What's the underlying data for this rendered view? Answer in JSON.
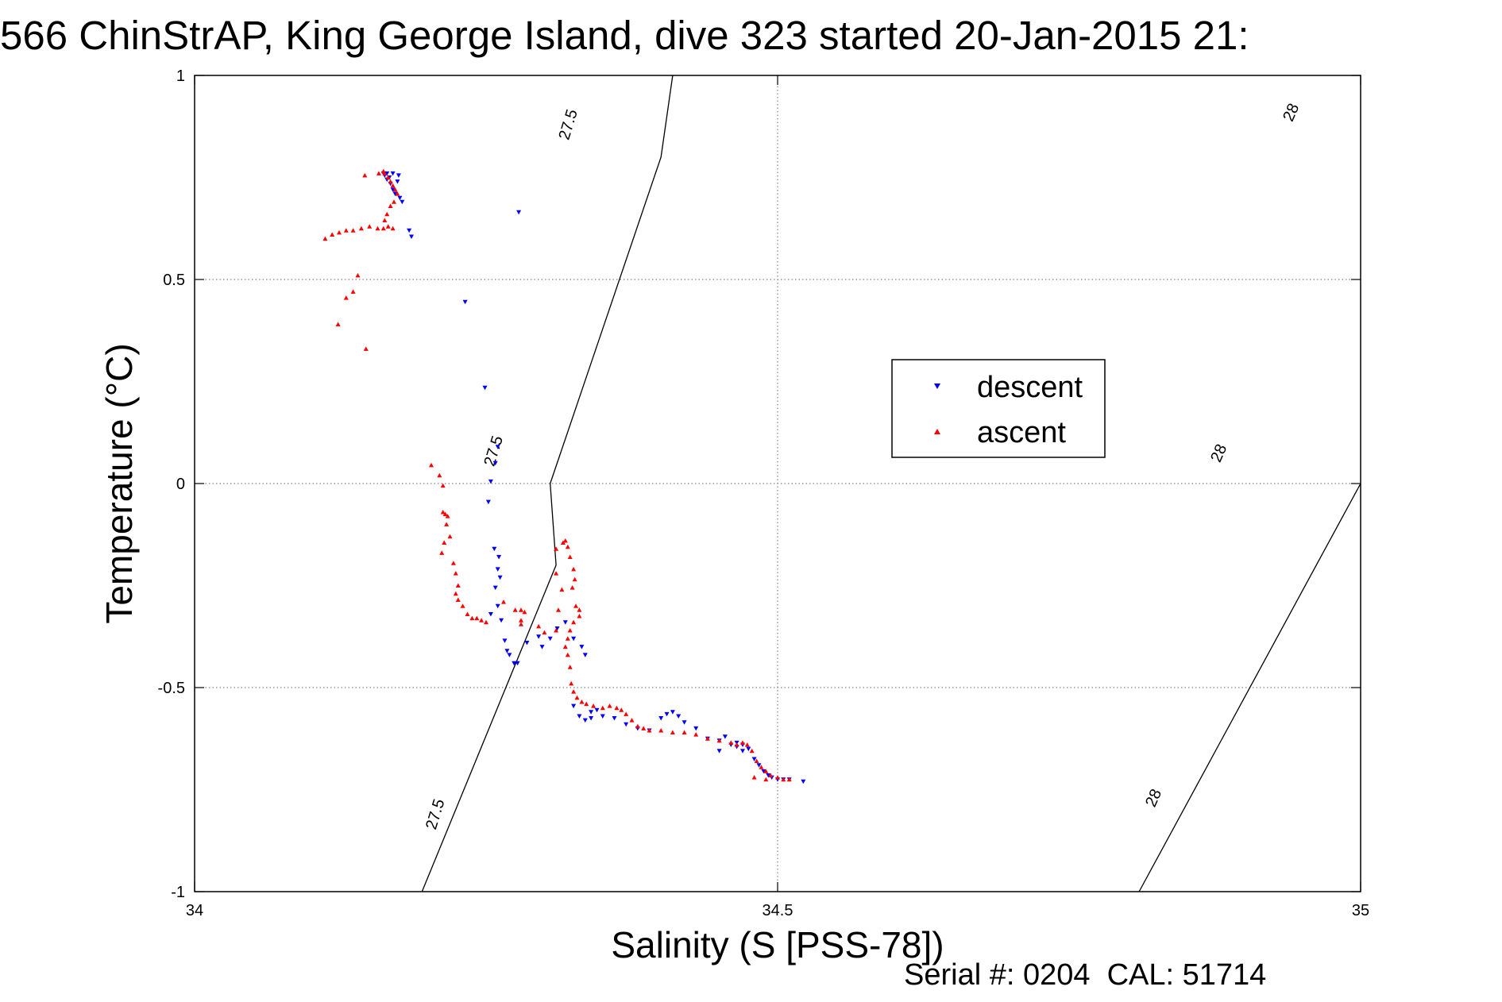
{
  "chart_data": {
    "type": "scatter",
    "title": "566 ChinStrAP, King George Island, dive 323 started 20-Jan-2015 21:",
    "xlabel": "Salinity (S [PSS-78])",
    "ylabel": "Temperature (°C)",
    "footer": "Serial #: 0204  CAL: 51714",
    "xlim": [
      34,
      35
    ],
    "ylim": [
      -1,
      1
    ],
    "xticks": [
      34,
      34.5,
      35
    ],
    "xtick_labels": [
      "34",
      "34.5",
      "35"
    ],
    "yticks": [
      -1,
      -0.5,
      0,
      0.5,
      1
    ],
    "ytick_labels": [
      "-1",
      "-0.5",
      "0",
      "0.5",
      "1"
    ],
    "grid": true,
    "legend_position": "upper-middle-right",
    "density_contours": [
      {
        "label": "27.5",
        "points": [
          [
            34.195,
            -1.0
          ],
          [
            34.31,
            -0.2
          ],
          [
            34.305,
            0.0
          ],
          [
            34.4,
            0.8
          ],
          [
            34.41,
            1.0
          ]
        ],
        "label_positions": [
          [
            34.206,
            -0.81
          ],
          [
            34.256,
            0.08
          ],
          [
            34.32,
            0.88
          ]
        ]
      },
      {
        "label": "28",
        "points": [
          [
            34.81,
            -1.0
          ],
          [
            35.0,
            0.0
          ],
          [
            35.12,
            1.0
          ]
        ],
        "label_positions": [
          [
            34.822,
            -0.77
          ],
          [
            34.878,
            0.075
          ],
          [
            34.94,
            0.91
          ]
        ]
      }
    ],
    "series": [
      {
        "name": "descent",
        "marker": "triangle-down",
        "color": "#0000ff",
        "points": [
          [
            34.163,
            0.755
          ],
          [
            34.165,
            0.745
          ],
          [
            34.168,
            0.735
          ],
          [
            34.17,
            0.72
          ],
          [
            34.172,
            0.71
          ],
          [
            34.167,
            0.75
          ],
          [
            34.174,
            0.74
          ],
          [
            34.176,
            0.7
          ],
          [
            34.178,
            0.69
          ],
          [
            34.184,
            0.62
          ],
          [
            34.186,
            0.605
          ],
          [
            34.165,
            0.76
          ],
          [
            34.162,
            0.76
          ],
          [
            34.17,
            0.76
          ],
          [
            34.175,
            0.755
          ],
          [
            34.278,
            0.665
          ],
          [
            34.232,
            0.445
          ],
          [
            34.249,
            0.235
          ],
          [
            34.26,
            0.09
          ],
          [
            34.258,
            0.05
          ],
          [
            34.254,
            0.005
          ],
          [
            34.252,
            -0.045
          ],
          [
            34.257,
            -0.16
          ],
          [
            34.261,
            -0.18
          ],
          [
            34.26,
            -0.21
          ],
          [
            34.262,
            -0.23
          ],
          [
            34.258,
            -0.255
          ],
          [
            34.26,
            -0.3
          ],
          [
            34.254,
            -0.32
          ],
          [
            34.263,
            -0.335
          ],
          [
            34.266,
            -0.385
          ],
          [
            34.268,
            -0.41
          ],
          [
            34.27,
            -0.42
          ],
          [
            34.274,
            -0.44
          ],
          [
            34.277,
            -0.44
          ],
          [
            34.285,
            -0.39
          ],
          [
            34.295,
            -0.375
          ],
          [
            34.298,
            -0.4
          ],
          [
            34.305,
            -0.38
          ],
          [
            34.311,
            -0.355
          ],
          [
            34.318,
            -0.34
          ],
          [
            34.325,
            -0.38
          ],
          [
            34.332,
            -0.4
          ],
          [
            34.335,
            -0.42
          ],
          [
            34.325,
            -0.545
          ],
          [
            34.33,
            -0.57
          ],
          [
            34.335,
            -0.58
          ],
          [
            34.34,
            -0.575
          ],
          [
            34.35,
            -0.57
          ],
          [
            34.36,
            -0.575
          ],
          [
            34.37,
            -0.59
          ],
          [
            34.38,
            -0.6
          ],
          [
            34.39,
            -0.605
          ],
          [
            34.4,
            -0.575
          ],
          [
            34.405,
            -0.565
          ],
          [
            34.41,
            -0.56
          ],
          [
            34.415,
            -0.57
          ],
          [
            34.42,
            -0.585
          ],
          [
            34.43,
            -0.6
          ],
          [
            34.44,
            -0.625
          ],
          [
            34.45,
            -0.63
          ],
          [
            34.46,
            -0.64
          ],
          [
            34.465,
            -0.645
          ],
          [
            34.47,
            -0.64
          ],
          [
            34.475,
            -0.65
          ],
          [
            34.48,
            -0.675
          ],
          [
            34.484,
            -0.69
          ],
          [
            34.488,
            -0.705
          ],
          [
            34.492,
            -0.715
          ],
          [
            34.495,
            -0.72
          ],
          [
            34.5,
            -0.725
          ],
          [
            34.505,
            -0.725
          ],
          [
            34.51,
            -0.725
          ],
          [
            34.522,
            -0.73
          ],
          [
            34.45,
            -0.655
          ],
          [
            34.455,
            -0.62
          ],
          [
            34.465,
            -0.635
          ],
          [
            34.47,
            -0.655
          ],
          [
            34.345,
            -0.555
          ],
          [
            34.34,
            -0.56
          ]
        ]
      },
      {
        "name": "ascent",
        "marker": "triangle-up",
        "color": "#ff0000",
        "points": [
          [
            34.163,
            0.76
          ],
          [
            34.166,
            0.75
          ],
          [
            34.168,
            0.74
          ],
          [
            34.17,
            0.73
          ],
          [
            34.172,
            0.72
          ],
          [
            34.174,
            0.71
          ],
          [
            34.171,
            0.69
          ],
          [
            34.168,
            0.68
          ],
          [
            34.165,
            0.66
          ],
          [
            34.163,
            0.645
          ],
          [
            34.166,
            0.63
          ],
          [
            34.17,
            0.625
          ],
          [
            34.162,
            0.625
          ],
          [
            34.157,
            0.625
          ],
          [
            34.15,
            0.63
          ],
          [
            34.143,
            0.625
          ],
          [
            34.136,
            0.62
          ],
          [
            34.13,
            0.62
          ],
          [
            34.124,
            0.615
          ],
          [
            34.118,
            0.61
          ],
          [
            34.112,
            0.6
          ],
          [
            34.146,
            0.755
          ],
          [
            34.158,
            0.76
          ],
          [
            34.162,
            0.765
          ],
          [
            34.14,
            0.51
          ],
          [
            34.136,
            0.47
          ],
          [
            34.13,
            0.455
          ],
          [
            34.123,
            0.39
          ],
          [
            34.147,
            0.33
          ],
          [
            34.203,
            0.045
          ],
          [
            34.21,
            0.02
          ],
          [
            34.213,
            -0.005
          ],
          [
            34.213,
            -0.07
          ],
          [
            34.215,
            -0.075
          ],
          [
            34.217,
            -0.08
          ],
          [
            34.216,
            -0.1
          ],
          [
            34.219,
            -0.13
          ],
          [
            34.214,
            -0.145
          ],
          [
            34.212,
            -0.17
          ],
          [
            34.222,
            -0.195
          ],
          [
            34.224,
            -0.22
          ],
          [
            34.226,
            -0.25
          ],
          [
            34.224,
            -0.27
          ],
          [
            34.226,
            -0.285
          ],
          [
            34.23,
            -0.3
          ],
          [
            34.234,
            -0.32
          ],
          [
            34.238,
            -0.33
          ],
          [
            34.242,
            -0.33
          ],
          [
            34.246,
            -0.335
          ],
          [
            34.25,
            -0.34
          ],
          [
            34.265,
            -0.29
          ],
          [
            34.275,
            -0.31
          ],
          [
            34.28,
            -0.31
          ],
          [
            34.283,
            -0.315
          ],
          [
            34.28,
            -0.335
          ],
          [
            34.28,
            -0.345
          ],
          [
            34.295,
            -0.35
          ],
          [
            34.3,
            -0.365
          ],
          [
            34.31,
            -0.36
          ],
          [
            34.312,
            -0.31
          ],
          [
            34.315,
            -0.26
          ],
          [
            34.31,
            -0.22
          ],
          [
            34.31,
            -0.16
          ],
          [
            34.316,
            -0.145
          ],
          [
            34.318,
            -0.14
          ],
          [
            34.32,
            -0.155
          ],
          [
            34.322,
            -0.18
          ],
          [
            34.325,
            -0.21
          ],
          [
            34.326,
            -0.235
          ],
          [
            34.324,
            -0.255
          ],
          [
            34.327,
            -0.3
          ],
          [
            34.33,
            -0.31
          ],
          [
            34.33,
            -0.325
          ],
          [
            34.325,
            -0.34
          ],
          [
            34.322,
            -0.36
          ],
          [
            34.32,
            -0.38
          ],
          [
            34.318,
            -0.4
          ],
          [
            34.32,
            -0.42
          ],
          [
            34.322,
            -0.45
          ],
          [
            34.323,
            -0.49
          ],
          [
            34.325,
            -0.51
          ],
          [
            34.328,
            -0.525
          ],
          [
            34.332,
            -0.535
          ],
          [
            34.336,
            -0.54
          ],
          [
            34.342,
            -0.545
          ],
          [
            34.35,
            -0.55
          ],
          [
            34.356,
            -0.545
          ],
          [
            34.362,
            -0.55
          ],
          [
            34.366,
            -0.555
          ],
          [
            34.37,
            -0.565
          ],
          [
            34.375,
            -0.58
          ],
          [
            34.38,
            -0.595
          ],
          [
            34.385,
            -0.6
          ],
          [
            34.39,
            -0.605
          ],
          [
            34.4,
            -0.605
          ],
          [
            34.41,
            -0.61
          ],
          [
            34.42,
            -0.61
          ],
          [
            34.43,
            -0.615
          ],
          [
            34.44,
            -0.625
          ],
          [
            34.45,
            -0.63
          ],
          [
            34.46,
            -0.635
          ],
          [
            34.465,
            -0.64
          ],
          [
            34.47,
            -0.635
          ],
          [
            34.474,
            -0.64
          ],
          [
            34.478,
            -0.655
          ],
          [
            34.482,
            -0.68
          ],
          [
            34.486,
            -0.695
          ],
          [
            34.49,
            -0.705
          ],
          [
            34.494,
            -0.715
          ],
          [
            34.5,
            -0.72
          ],
          [
            34.505,
            -0.725
          ],
          [
            34.51,
            -0.725
          ],
          [
            34.49,
            -0.725
          ],
          [
            34.48,
            -0.72
          ]
        ]
      }
    ]
  }
}
